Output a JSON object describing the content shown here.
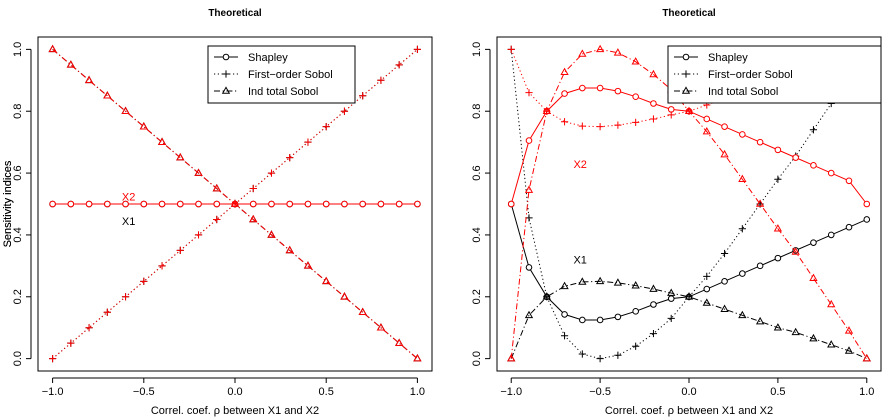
{
  "chart_data": [
    {
      "type": "line",
      "title": "Theoretical",
      "xlabel": "Correl. coef. ρ between X1 and X2",
      "ylabel": "Sensitivity indices",
      "xlim": [
        -1.0,
        1.0
      ],
      "ylim": [
        0.0,
        1.0
      ],
      "x_ticks": [
        -1.0,
        -0.5,
        0.0,
        0.5,
        1.0
      ],
      "x_tick_labels": [
        "−1.0",
        "−0.5",
        "0.0",
        "0.5",
        "1.0"
      ],
      "y_ticks": [
        0.0,
        0.2,
        0.4,
        0.6,
        0.8,
        1.0
      ],
      "y_tick_labels": [
        "0.0",
        "0.2",
        "0.4",
        "0.6",
        "0.8",
        "1.0"
      ],
      "grid": false,
      "legend": {
        "position": "top-right",
        "entries": [
          {
            "label": "Shapley",
            "marker": "circle",
            "linestyle": "solid"
          },
          {
            "label": "First−order Sobol",
            "marker": "plus",
            "linestyle": "dotted"
          },
          {
            "label": "Ind total Sobol",
            "marker": "triangle",
            "linestyle": "dashdot"
          }
        ]
      },
      "annotations": [
        {
          "text": "X2",
          "x": -0.62,
          "y": 0.525,
          "color": "#ff0000"
        },
        {
          "text": "X1",
          "x": -0.62,
          "y": 0.445,
          "color": "#000000"
        }
      ],
      "x": [
        -1.0,
        -0.9,
        -0.8,
        -0.7,
        -0.6,
        -0.5,
        -0.4,
        -0.3,
        -0.2,
        -0.1,
        0.0,
        0.1,
        0.2,
        0.3,
        0.4,
        0.5,
        0.6,
        0.7,
        0.8,
        0.9,
        1.0
      ],
      "series": [
        {
          "variable": "X1",
          "index": "Shapley",
          "color": "#000000",
          "marker": "circle",
          "linestyle": "solid",
          "values": [
            0.5,
            0.5,
            0.5,
            0.5,
            0.5,
            0.5,
            0.5,
            0.5,
            0.5,
            0.5,
            0.5,
            0.5,
            0.5,
            0.5,
            0.5,
            0.5,
            0.5,
            0.5,
            0.5,
            0.5,
            0.5
          ]
        },
        {
          "variable": "X1",
          "index": "First−order Sobol",
          "color": "#000000",
          "marker": "plus",
          "linestyle": "dotted",
          "values": [
            0.0,
            0.05,
            0.1,
            0.15,
            0.2,
            0.25,
            0.3,
            0.35,
            0.4,
            0.45,
            0.5,
            0.55,
            0.6,
            0.65,
            0.7,
            0.75,
            0.8,
            0.85,
            0.9,
            0.95,
            1.0
          ]
        },
        {
          "variable": "X1",
          "index": "Ind total Sobol",
          "color": "#000000",
          "marker": "triangle",
          "linestyle": "dashdot",
          "values": [
            1.0,
            0.95,
            0.9,
            0.85,
            0.8,
            0.75,
            0.7,
            0.65,
            0.6,
            0.55,
            0.5,
            0.45,
            0.4,
            0.35,
            0.3,
            0.25,
            0.2,
            0.15,
            0.1,
            0.05,
            0.0
          ]
        },
        {
          "variable": "X2",
          "index": "Shapley",
          "color": "#ff0000",
          "marker": "circle",
          "linestyle": "solid",
          "values": [
            0.5,
            0.5,
            0.5,
            0.5,
            0.5,
            0.5,
            0.5,
            0.5,
            0.5,
            0.5,
            0.5,
            0.5,
            0.5,
            0.5,
            0.5,
            0.5,
            0.5,
            0.5,
            0.5,
            0.5,
            0.5
          ]
        },
        {
          "variable": "X2",
          "index": "First−order Sobol",
          "color": "#ff0000",
          "marker": "plus",
          "linestyle": "dotted",
          "values": [
            0.0,
            0.05,
            0.1,
            0.15,
            0.2,
            0.25,
            0.3,
            0.35,
            0.4,
            0.45,
            0.5,
            0.55,
            0.6,
            0.65,
            0.7,
            0.75,
            0.8,
            0.85,
            0.9,
            0.95,
            1.0
          ]
        },
        {
          "variable": "X2",
          "index": "Ind total Sobol",
          "color": "#ff0000",
          "marker": "triangle",
          "linestyle": "dashdot",
          "values": [
            1.0,
            0.95,
            0.9,
            0.85,
            0.8,
            0.75,
            0.7,
            0.65,
            0.6,
            0.55,
            0.5,
            0.45,
            0.4,
            0.35,
            0.3,
            0.25,
            0.2,
            0.15,
            0.1,
            0.05,
            0.0
          ]
        }
      ]
    },
    {
      "type": "line",
      "title": "Theoretical",
      "xlabel": "Correl. coef. ρ between X1 and X2",
      "ylabel": "Sensitivity indices",
      "xlim": [
        -1.0,
        1.0
      ],
      "ylim": [
        0.0,
        1.0
      ],
      "x_ticks": [
        -1.0,
        -0.5,
        0.0,
        0.5,
        1.0
      ],
      "x_tick_labels": [
        "−1.0",
        "−0.5",
        "0.0",
        "0.5",
        "1.0"
      ],
      "y_ticks": [
        0.0,
        0.2,
        0.4,
        0.6,
        0.8,
        1.0
      ],
      "y_tick_labels": [
        "0.0",
        "0.2",
        "0.4",
        "0.6",
        "0.8",
        "1.0"
      ],
      "grid": false,
      "legend": {
        "position": "top-right",
        "entries": [
          {
            "label": "Shapley",
            "marker": "circle",
            "linestyle": "solid"
          },
          {
            "label": "First−order Sobol",
            "marker": "plus",
            "linestyle": "dotted"
          },
          {
            "label": "Ind total Sobol",
            "marker": "triangle",
            "linestyle": "dashdot"
          }
        ]
      },
      "annotations": [
        {
          "text": "X2",
          "x": -0.65,
          "y": 0.63,
          "color": "#ff0000"
        },
        {
          "text": "X1",
          "x": -0.65,
          "y": 0.32,
          "color": "#000000"
        }
      ],
      "x": [
        -1.0,
        -0.9,
        -0.8,
        -0.7,
        -0.6,
        -0.5,
        -0.4,
        -0.3,
        -0.2,
        -0.1,
        0.0,
        0.1,
        0.2,
        0.3,
        0.4,
        0.5,
        0.6,
        0.7,
        0.8,
        0.9,
        1.0
      ],
      "series": [
        {
          "variable": "X1",
          "index": "Shapley",
          "color": "#000000",
          "marker": "circle",
          "linestyle": "solid",
          "values": [
            0.5,
            0.295,
            0.2,
            0.143,
            0.125,
            0.125,
            0.135,
            0.153,
            0.175,
            0.194,
            0.2,
            0.225,
            0.25,
            0.275,
            0.3,
            0.325,
            0.35,
            0.375,
            0.4,
            0.425,
            0.45
          ]
        },
        {
          "variable": "X1",
          "index": "First−order Sobol",
          "color": "#000000",
          "marker": "plus",
          "linestyle": "dotted",
          "values": [
            1.0,
            0.455,
            0.2,
            0.074,
            0.015,
            0.0,
            0.011,
            0.04,
            0.081,
            0.13,
            0.2,
            0.266,
            0.34,
            0.42,
            0.5,
            0.58,
            0.655,
            0.74,
            0.825,
            0.91,
            1.0
          ]
        },
        {
          "variable": "X1",
          "index": "Ind total Sobol",
          "color": "#000000",
          "marker": "triangle",
          "linestyle": "dashdot",
          "values": [
            0.0,
            0.14,
            0.2,
            0.234,
            0.248,
            0.25,
            0.245,
            0.236,
            0.225,
            0.212,
            0.2,
            0.18,
            0.16,
            0.14,
            0.12,
            0.1,
            0.085,
            0.065,
            0.045,
            0.025,
            0.0
          ]
        },
        {
          "variable": "X2",
          "index": "Shapley",
          "color": "#ff0000",
          "marker": "circle",
          "linestyle": "solid",
          "values": [
            0.5,
            0.705,
            0.8,
            0.857,
            0.875,
            0.875,
            0.865,
            0.847,
            0.825,
            0.806,
            0.8,
            0.775,
            0.75,
            0.725,
            0.7,
            0.675,
            0.65,
            0.625,
            0.6,
            0.575,
            0.5
          ]
        },
        {
          "variable": "X2",
          "index": "First−order Sobol",
          "color": "#ff0000",
          "marker": "plus",
          "linestyle": "dotted",
          "values": [
            1.0,
            0.86,
            0.8,
            0.766,
            0.752,
            0.75,
            0.755,
            0.764,
            0.775,
            0.788,
            0.8,
            0.82,
            0.84,
            0.86,
            0.88,
            0.9,
            0.915,
            0.935,
            0.955,
            0.975,
            1.0
          ]
        },
        {
          "variable": "X2",
          "index": "Ind total Sobol",
          "color": "#ff0000",
          "marker": "triangle",
          "linestyle": "dashdot",
          "values": [
            0.0,
            0.545,
            0.8,
            0.926,
            0.985,
            1.0,
            0.989,
            0.96,
            0.919,
            0.87,
            0.8,
            0.734,
            0.66,
            0.58,
            0.5,
            0.42,
            0.345,
            0.26,
            0.175,
            0.09,
            0.0
          ]
        }
      ]
    }
  ]
}
